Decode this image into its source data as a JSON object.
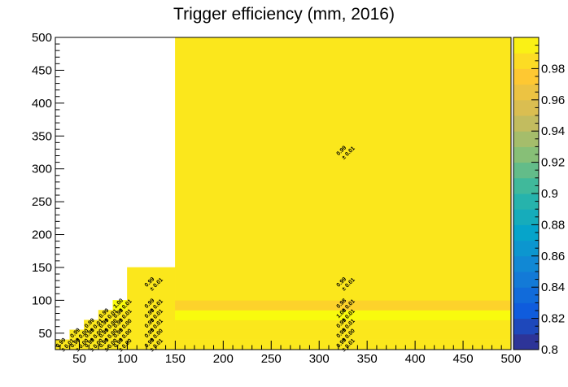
{
  "chart_data": {
    "type": "heatmap",
    "title": "Trigger efficiency (mm, 2016)",
    "xlabel": "",
    "ylabel": "",
    "xlim": [
      25,
      500
    ],
    "ylim": [
      25,
      500
    ],
    "zlim": [
      0.8,
      1.0
    ],
    "x_ticks": [
      50,
      100,
      150,
      200,
      250,
      300,
      350,
      400,
      450,
      500
    ],
    "y_ticks": [
      50,
      100,
      150,
      200,
      250,
      300,
      350,
      400,
      450,
      500
    ],
    "z_ticks": [
      0.8,
      0.82,
      0.84,
      0.86,
      0.88,
      0.9,
      0.92,
      0.94,
      0.96,
      0.98
    ],
    "z_tick_labels": [
      "0.8",
      "0.82",
      "0.84",
      "0.86",
      "0.88",
      "0.9",
      "0.92",
      "0.94",
      "0.96",
      "0.98"
    ],
    "colormap_colors": [
      "#352a87",
      "#0f5cdd",
      "#1481d6",
      "#06a4ca",
      "#2eb7a4",
      "#87bf77",
      "#d1bb59",
      "#fec832",
      "#f9fb0e"
    ],
    "x_edges": [
      25,
      40,
      55,
      70,
      85,
      100,
      150,
      500
    ],
    "y_edges": [
      25,
      40,
      55,
      70,
      85,
      100,
      150,
      500
    ],
    "cells": [
      {
        "x": [
          25,
          40
        ],
        "y": [
          25,
          40
        ],
        "value": 0.99,
        "label": "0.99",
        "error": "± 0.01"
      },
      {
        "x": [
          40,
          55
        ],
        "y": [
          25,
          40
        ],
        "value": 0.99,
        "label": "0.99",
        "error": "± 0.00"
      },
      {
        "x": [
          55,
          70
        ],
        "y": [
          25,
          40
        ],
        "value": 0.99,
        "label": "0.99",
        "error": "± 0.00"
      },
      {
        "x": [
          70,
          85
        ],
        "y": [
          25,
          40
        ],
        "value": 0.99,
        "label": "0.99",
        "error": "± 0.00"
      },
      {
        "x": [
          85,
          100
        ],
        "y": [
          25,
          40
        ],
        "value": 0.99,
        "label": "0.99",
        "error": "± 0.00"
      },
      {
        "x": [
          100,
          150
        ],
        "y": [
          25,
          40
        ],
        "value": 0.99,
        "label": "0.99",
        "error": "± 0.01"
      },
      {
        "x": [
          150,
          500
        ],
        "y": [
          25,
          40
        ],
        "value": 0.99,
        "label": "0.99",
        "error": "± 0.01"
      },
      {
        "x": [
          40,
          55
        ],
        "y": [
          40,
          55
        ],
        "value": 0.99,
        "label": "0.99",
        "error": "± 0.00"
      },
      {
        "x": [
          55,
          70
        ],
        "y": [
          40,
          55
        ],
        "value": 0.99,
        "label": "0.99",
        "error": "± 0.00"
      },
      {
        "x": [
          70,
          85
        ],
        "y": [
          40,
          55
        ],
        "value": 0.99,
        "label": "0.99",
        "error": "± 0.00"
      },
      {
        "x": [
          85,
          100
        ],
        "y": [
          40,
          55
        ],
        "value": 0.99,
        "label": "0.99",
        "error": "± 0.00"
      },
      {
        "x": [
          100,
          150
        ],
        "y": [
          40,
          55
        ],
        "value": 0.99,
        "label": "0.99",
        "error": "± 0.00"
      },
      {
        "x": [
          150,
          500
        ],
        "y": [
          40,
          55
        ],
        "value": 0.99,
        "label": "0.99",
        "error": "± 0.00"
      },
      {
        "x": [
          55,
          70
        ],
        "y": [
          55,
          70
        ],
        "value": 0.99,
        "label": "0.99",
        "error": "± 0.01"
      },
      {
        "x": [
          70,
          85
        ],
        "y": [
          55,
          70
        ],
        "value": 0.99,
        "label": "0.99",
        "error": "± 0.00"
      },
      {
        "x": [
          85,
          100
        ],
        "y": [
          55,
          70
        ],
        "value": 0.99,
        "label": "0.99",
        "error": "± 0.00"
      },
      {
        "x": [
          100,
          150
        ],
        "y": [
          55,
          70
        ],
        "value": 0.99,
        "label": "0.99",
        "error": "± 0.01"
      },
      {
        "x": [
          150,
          500
        ],
        "y": [
          55,
          70
        ],
        "value": 0.99,
        "label": "0.99",
        "error": "± 0.01"
      },
      {
        "x": [
          70,
          85
        ],
        "y": [
          70,
          85
        ],
        "value": 0.99,
        "label": "0.99",
        "error": "± 0.01"
      },
      {
        "x": [
          85,
          100
        ],
        "y": [
          70,
          85
        ],
        "value": 0.99,
        "label": "0.99",
        "error": "± 0.01"
      },
      {
        "x": [
          100,
          150
        ],
        "y": [
          70,
          85
        ],
        "value": 0.99,
        "label": "0.99",
        "error": "± 0.01"
      },
      {
        "x": [
          150,
          500
        ],
        "y": [
          70,
          85
        ],
        "value": 1.0,
        "label": "1.00",
        "error": "± 0.01"
      },
      {
        "x": [
          85,
          100
        ],
        "y": [
          85,
          100
        ],
        "value": 1.0,
        "label": "1.00",
        "error": "± 0.01"
      },
      {
        "x": [
          100,
          150
        ],
        "y": [
          85,
          100
        ],
        "value": 0.99,
        "label": "0.99",
        "error": "± 0.01"
      },
      {
        "x": [
          150,
          500
        ],
        "y": [
          85,
          100
        ],
        "value": 0.98,
        "label": "0.98",
        "error": "± 0.01"
      },
      {
        "x": [
          100,
          150
        ],
        "y": [
          100,
          150
        ],
        "value": 0.99,
        "label": "0.99",
        "error": "± 0.01"
      },
      {
        "x": [
          150,
          500
        ],
        "y": [
          100,
          150
        ],
        "value": 0.99,
        "label": "0.99",
        "error": "± 0.01"
      },
      {
        "x": [
          150,
          500
        ],
        "y": [
          150,
          500
        ],
        "value": 0.99,
        "label": "0.99",
        "error": "± 0.01"
      }
    ]
  }
}
